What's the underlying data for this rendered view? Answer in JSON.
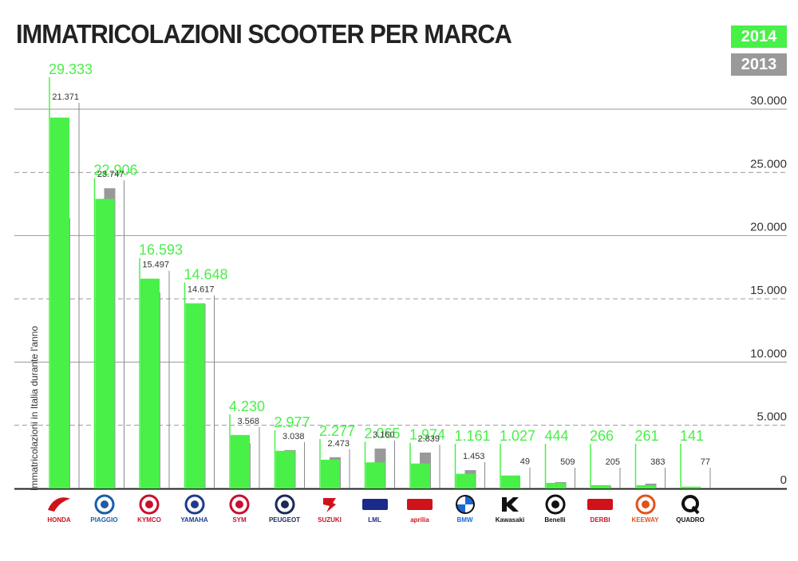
{
  "title": "IMMATRICOLAZIONI SCOOTER PER MARCA",
  "legend": [
    {
      "label": "2014",
      "color": "#48f048"
    },
    {
      "label": "2013",
      "color": "#999999"
    }
  ],
  "colors": {
    "series_2014": "#48f048",
    "series_2013": "#999999",
    "label_2014": "#48f048",
    "label_2013": "#333333"
  },
  "chart_data": {
    "type": "bar",
    "ylabel": "Immatricolazioni in Italia durante l'anno",
    "ylim": [
      0,
      30000
    ],
    "yticks": [
      "0",
      "5.000",
      "10.000",
      "15.000",
      "20.000",
      "25.000",
      "30.000"
    ],
    "categories": [
      "HONDA",
      "PIAGGIO",
      "KYMCO",
      "YAMAHA",
      "SYM",
      "PEUGEOT",
      "SUZUKI",
      "LML",
      "aprilia",
      "BMW",
      "Kawasaki",
      "Benelli",
      "DERBI",
      "KEEWAY",
      "QUADRO"
    ],
    "series": [
      {
        "name": "2014",
        "values": [
          29333,
          22906,
          16593,
          14648,
          4230,
          2977,
          2277,
          2065,
          1974,
          1161,
          1027,
          444,
          266,
          261,
          141
        ],
        "labels": [
          "29.333",
          "22.906",
          "16.593",
          "14.648",
          "4.230",
          "2.977",
          "2.277",
          "2.065",
          "1.974",
          "1.161",
          "1.027",
          "444",
          "266",
          "261",
          "141"
        ]
      },
      {
        "name": "2013",
        "values": [
          21371,
          23747,
          15497,
          14617,
          3568,
          3038,
          2473,
          3160,
          2839,
          1453,
          49,
          509,
          205,
          383,
          77
        ],
        "labels": [
          "21.371",
          "23.747",
          "15.497",
          "14.617",
          "3.568",
          "3.038",
          "2.473",
          "3.160",
          "2.839",
          "1.453",
          "49",
          "509",
          "205",
          "383",
          "77"
        ]
      }
    ]
  },
  "logos": [
    {
      "name": "HONDA",
      "icon": "honda-wing-icon",
      "color": "#d0121b"
    },
    {
      "name": "PIAGGIO",
      "icon": "piaggio-shield-icon",
      "color": "#1a5ea8"
    },
    {
      "name": "KYMCO",
      "icon": "kymco-oval-icon",
      "color": "#c8102e"
    },
    {
      "name": "YAMAHA",
      "icon": "yamaha-tuning-forks-icon",
      "color": "#1f3b8f"
    },
    {
      "name": "SYM",
      "icon": "sym-emblem-icon",
      "color": "#c8102e"
    },
    {
      "name": "PEUGEOT",
      "icon": "peugeot-lion-icon",
      "color": "#1a2a5a"
    },
    {
      "name": "SUZUKI",
      "icon": "suzuki-s-icon",
      "color": "#d0121b"
    },
    {
      "name": "LML",
      "icon": "lml-wordmark-icon",
      "color": "#1a2a8a"
    },
    {
      "name": "aprilia",
      "icon": "aprilia-wordmark-icon",
      "color": "#d0121b"
    },
    {
      "name": "BMW",
      "icon": "bmw-roundel-icon",
      "color": "#1c69d4"
    },
    {
      "name": "Kawasaki",
      "icon": "kawasaki-k-icon",
      "color": "#111111"
    },
    {
      "name": "Benelli",
      "icon": "benelli-lion-icon",
      "color": "#111111"
    },
    {
      "name": "DERBI",
      "icon": "derbi-wordmark-icon",
      "color": "#d0121b"
    },
    {
      "name": "KEEWAY",
      "icon": "keeway-emblem-icon",
      "color": "#e0531b"
    },
    {
      "name": "QUADRO",
      "icon": "quadro-q-icon",
      "color": "#111111"
    }
  ]
}
